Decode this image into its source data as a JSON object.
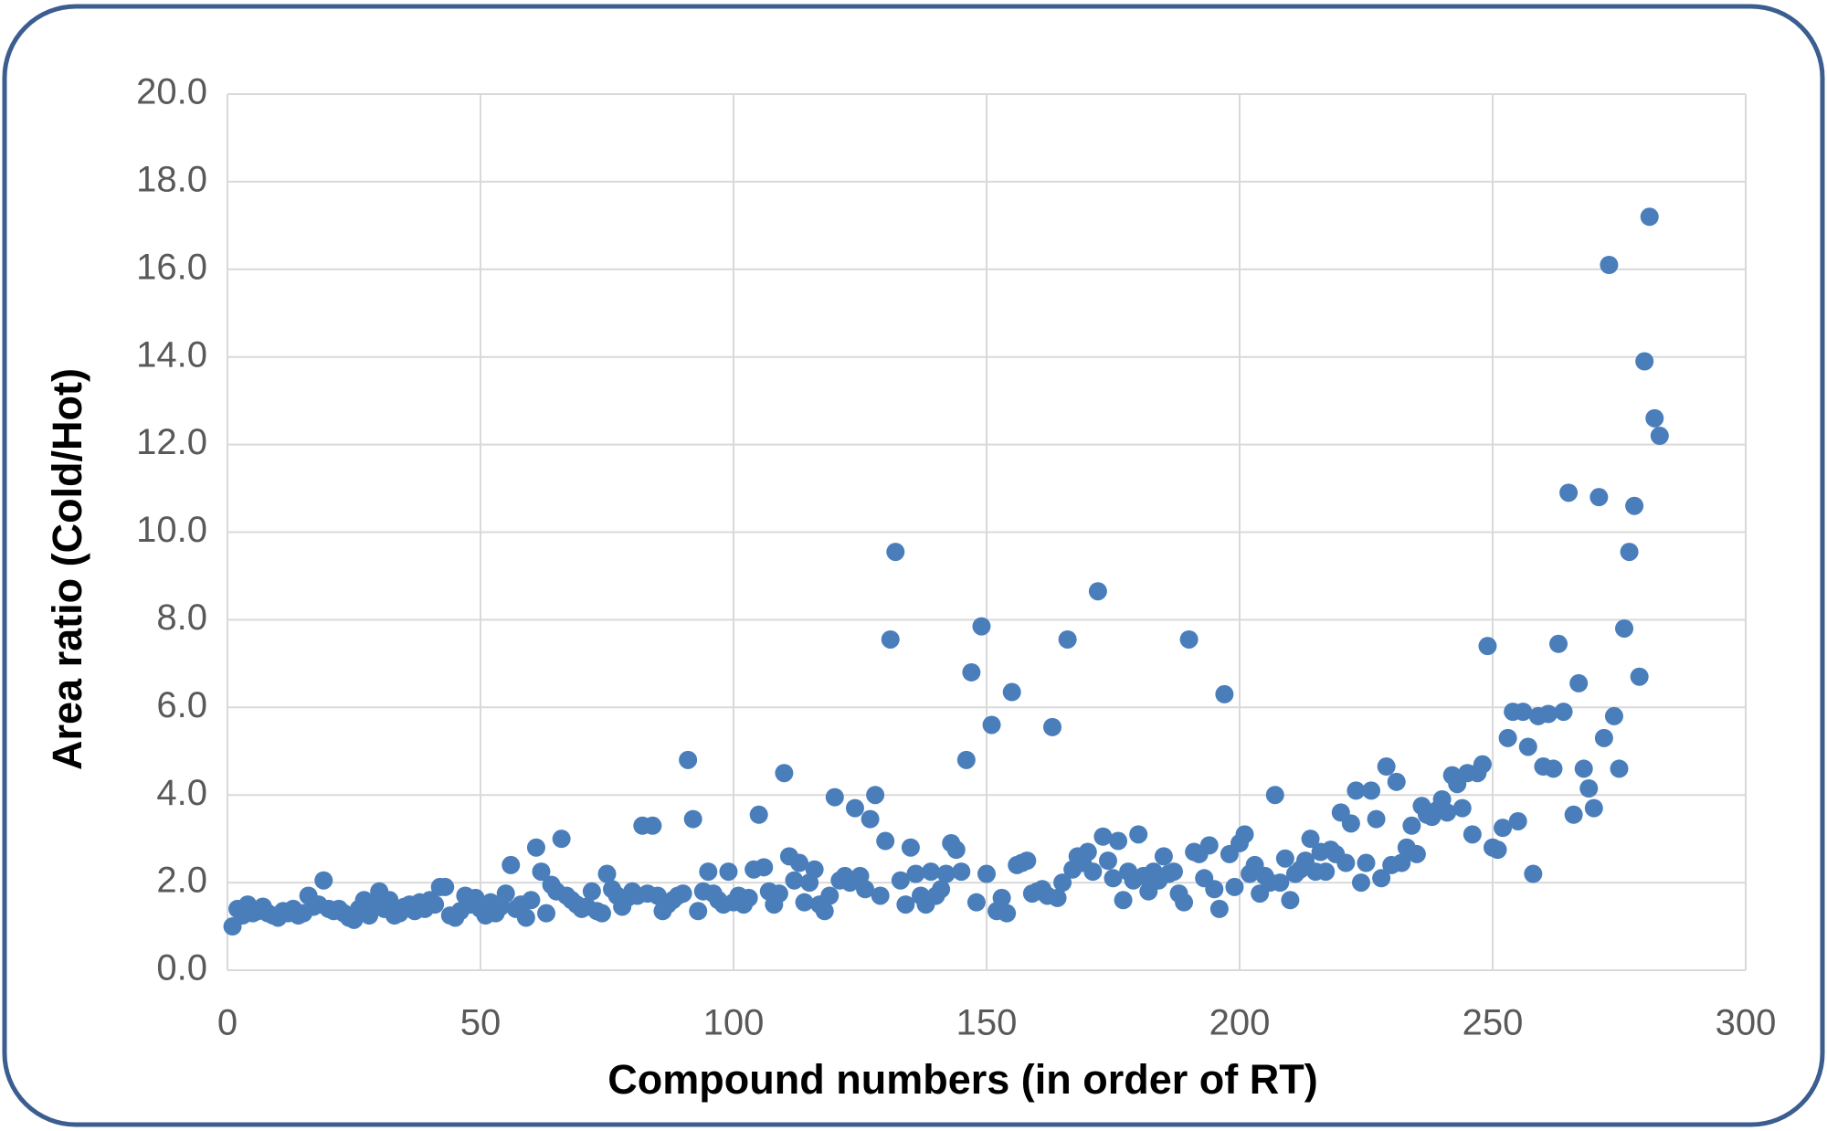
{
  "chart_data": {
    "type": "scatter",
    "x_label": "Compound numbers (in order of RT)",
    "y_label": "Area ratio (Cold/Hot)",
    "color": "#4a7ebb",
    "grid": true,
    "xlim": [
      0,
      300
    ],
    "xticks": [
      0,
      50,
      100,
      150,
      200,
      250,
      300
    ],
    "ylim": [
      0,
      20
    ],
    "yticks": [
      {
        "value": 0,
        "label": "0.0"
      },
      {
        "value": 2,
        "label": "2.0"
      },
      {
        "value": 4,
        "label": "4.0"
      },
      {
        "value": 6,
        "label": "6.0"
      },
      {
        "value": 8,
        "label": "8.0"
      },
      {
        "value": 10,
        "label": "10.0"
      },
      {
        "value": 12,
        "label": "12.0"
      },
      {
        "value": 14,
        "label": "14.0"
      },
      {
        "value": 16,
        "label": "16.0"
      },
      {
        "value": 18,
        "label": "18.0"
      },
      {
        "value": 20,
        "label": "20.0"
      }
    ],
    "x": [
      1,
      2,
      3,
      4,
      5,
      6,
      7,
      8,
      9,
      10,
      11,
      12,
      13,
      14,
      15,
      16,
      17,
      18,
      19,
      20,
      21,
      22,
      23,
      24,
      25,
      26,
      27,
      28,
      29,
      30,
      31,
      32,
      33,
      34,
      35,
      36,
      37,
      38,
      39,
      40,
      41,
      42,
      43,
      44,
      45,
      46,
      47,
      48,
      49,
      50,
      51,
      52,
      53,
      54,
      55,
      56,
      57,
      58,
      59,
      60,
      61,
      62,
      63,
      64,
      65,
      66,
      67,
      68,
      69,
      70,
      71,
      72,
      73,
      74,
      75,
      76,
      77,
      78,
      79,
      80,
      81,
      82,
      83,
      84,
      85,
      86,
      87,
      88,
      89,
      90,
      91,
      92,
      93,
      94,
      95,
      96,
      97,
      98,
      99,
      100,
      101,
      102,
      103,
      104,
      105,
      106,
      107,
      108,
      109,
      110,
      111,
      112,
      113,
      114,
      115,
      116,
      117,
      118,
      119,
      120,
      121,
      122,
      123,
      124,
      125,
      126,
      127,
      128,
      129,
      130,
      131,
      132,
      133,
      134,
      135,
      136,
      137,
      138,
      139,
      140,
      141,
      142,
      143,
      144,
      145,
      146,
      147,
      148,
      149,
      150,
      151,
      152,
      153,
      154,
      155,
      156,
      157,
      158,
      159,
      160,
      161,
      162,
      163,
      164,
      165,
      166,
      167,
      168,
      169,
      170,
      171,
      172,
      173,
      174,
      175,
      176,
      177,
      178,
      179,
      180,
      181,
      182,
      183,
      184,
      185,
      186,
      187,
      188,
      189,
      190,
      191,
      192,
      193,
      194,
      195,
      196,
      197,
      198,
      199,
      200,
      201,
      202,
      203,
      204,
      205,
      206,
      207,
      208,
      209,
      210,
      211,
      212,
      213,
      214,
      215,
      216,
      217,
      218,
      219,
      220,
      221,
      222,
      223,
      224,
      225,
      226,
      227,
      228,
      229,
      230,
      231,
      232,
      233,
      234,
      235,
      236,
      237,
      238,
      239,
      240,
      241,
      242,
      243,
      244,
      245,
      246,
      247,
      248,
      249,
      250,
      251,
      252,
      253,
      254,
      255,
      256,
      257,
      258,
      259,
      260,
      261,
      262,
      263,
      264,
      265,
      266,
      267,
      268,
      269,
      270,
      271,
      272,
      273,
      274,
      275,
      276,
      277,
      278,
      279,
      280,
      281,
      282,
      283
    ],
    "values": [
      1.0,
      1.4,
      1.25,
      1.5,
      1.3,
      1.35,
      1.45,
      1.3,
      1.25,
      1.2,
      1.35,
      1.3,
      1.4,
      1.25,
      1.3,
      1.7,
      1.45,
      1.5,
      2.05,
      1.4,
      1.35,
      1.4,
      1.3,
      1.2,
      1.15,
      1.4,
      1.6,
      1.25,
      1.5,
      1.8,
      1.4,
      1.6,
      1.25,
      1.3,
      1.45,
      1.5,
      1.35,
      1.55,
      1.4,
      1.6,
      1.5,
      1.9,
      1.9,
      1.25,
      1.2,
      1.35,
      1.7,
      1.5,
      1.65,
      1.4,
      1.25,
      1.55,
      1.3,
      1.45,
      1.75,
      2.4,
      1.4,
      1.5,
      1.2,
      1.6,
      2.8,
      2.25,
      1.3,
      1.95,
      1.8,
      3.0,
      1.7,
      1.6,
      1.5,
      1.4,
      1.45,
      1.8,
      1.35,
      1.3,
      2.2,
      1.85,
      1.7,
      1.45,
      1.65,
      1.8,
      1.7,
      3.3,
      1.75,
      3.3,
      1.7,
      1.35,
      1.5,
      1.6,
      1.7,
      1.75,
      4.8,
      3.45,
      1.35,
      1.8,
      2.25,
      1.75,
      1.6,
      1.5,
      2.25,
      1.55,
      1.7,
      1.5,
      1.65,
      2.3,
      3.55,
      2.35,
      1.8,
      1.5,
      1.75,
      4.5,
      2.6,
      2.05,
      2.45,
      1.55,
      2.0,
      2.3,
      1.5,
      1.35,
      1.7,
      3.95,
      2.05,
      2.15,
      2.0,
      3.7,
      2.15,
      1.85,
      3.45,
      4.0,
      1.7,
      2.95,
      7.55,
      9.55,
      2.05,
      1.5,
      2.8,
      2.2,
      1.7,
      1.5,
      2.25,
      1.7,
      1.85,
      2.2,
      2.9,
      2.75,
      2.25,
      4.8,
      6.8,
      1.55,
      7.85,
      2.2,
      5.6,
      1.35,
      1.65,
      1.3,
      6.35,
      2.4,
      2.45,
      2.5,
      1.75,
      1.8,
      1.85,
      1.7,
      5.55,
      1.65,
      2.0,
      7.55,
      2.3,
      2.6,
      2.45,
      2.7,
      2.25,
      8.65,
      3.05,
      2.5,
      2.1,
      2.95,
      1.6,
      2.25,
      2.05,
      3.1,
      2.15,
      1.8,
      2.25,
      2.05,
      2.6,
      2.2,
      2.25,
      1.75,
      1.55,
      7.55,
      2.7,
      2.65,
      2.1,
      2.85,
      1.85,
      1.4,
      6.3,
      2.65,
      1.9,
      2.9,
      3.1,
      2.2,
      2.4,
      1.75,
      2.15,
      2.0,
      4.0,
      2.0,
      2.55,
      1.6,
      2.2,
      2.3,
      2.5,
      3.0,
      2.25,
      2.7,
      2.25,
      2.75,
      2.65,
      3.6,
      2.45,
      3.35,
      4.1,
      2.0,
      2.45,
      4.1,
      3.45,
      2.1,
      4.65,
      2.4,
      4.3,
      2.45,
      2.8,
      3.3,
      2.65,
      3.75,
      3.55,
      3.5,
      3.65,
      3.9,
      3.6,
      4.45,
      4.25,
      3.7,
      4.5,
      3.1,
      4.5,
      4.7,
      7.4,
      2.8,
      2.75,
      3.25,
      5.3,
      5.9,
      3.4,
      5.9,
      5.1,
      2.2,
      5.8,
      4.65,
      5.85,
      4.6,
      7.45,
      5.9,
      10.9,
      3.55,
      6.55,
      4.6,
      4.15,
      3.7,
      10.8,
      5.3,
      16.1,
      5.8,
      4.6,
      7.8,
      9.55,
      10.6,
      6.7,
      13.9,
      17.2,
      12.6,
      12.2
    ]
  }
}
